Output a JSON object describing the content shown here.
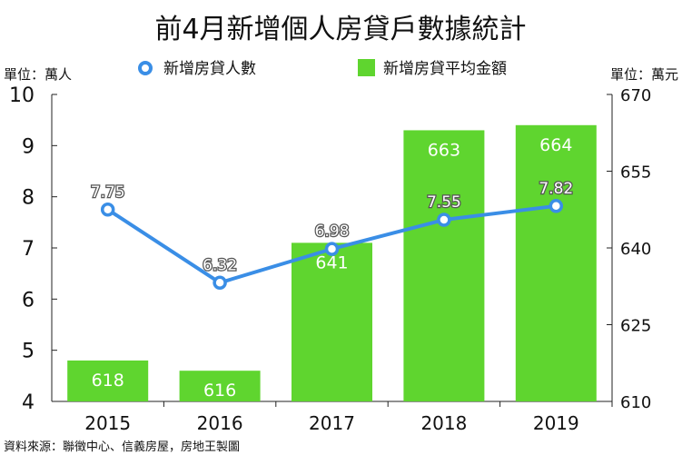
{
  "chart_data": {
    "type": "bar",
    "title": "前4月新增個人房貸戶數據統計",
    "left_unit": "單位：萬人",
    "right_unit": "單位：萬元",
    "source": "資料來源：聯徵中心、信義房屋，房地王製圖",
    "categories": [
      "2015",
      "2016",
      "2017",
      "2018",
      "2019"
    ],
    "bar_series": {
      "name": "新增房貸平均金額",
      "axis": "right",
      "values": [
        618,
        616,
        641,
        663,
        664
      ],
      "labels": [
        "618",
        "616",
        "641",
        "663",
        "664"
      ],
      "color": "#5fd52f"
    },
    "line_series": {
      "name": "新增房貸人數",
      "axis": "left",
      "values": [
        7.75,
        6.32,
        6.98,
        7.55,
        7.82
      ],
      "labels": [
        "7.75",
        "6.32",
        "6.98",
        "7.55",
        "7.82"
      ],
      "color": "#3a8ee6"
    },
    "left_axis": {
      "ylim": [
        4,
        10
      ],
      "ticks": [
        "4",
        "5",
        "6",
        "7",
        "8",
        "9",
        "10"
      ]
    },
    "right_axis": {
      "ylim": [
        610,
        670
      ],
      "ticks": [
        "610",
        "625",
        "640",
        "655",
        "670"
      ]
    },
    "grid": false,
    "legend_position": "top-center"
  }
}
